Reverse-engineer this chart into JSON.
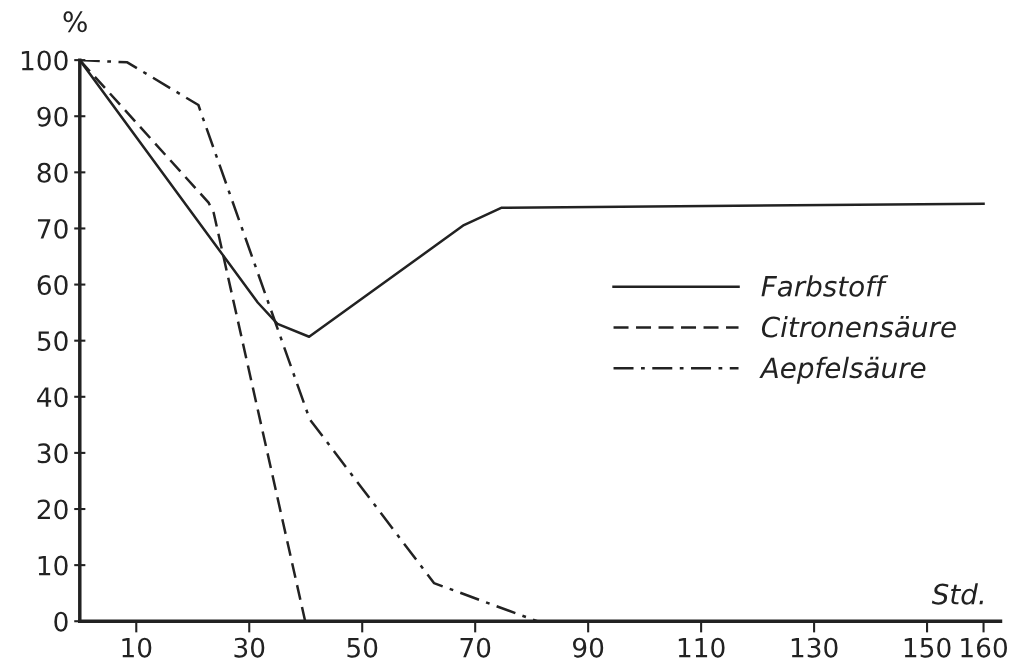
{
  "chart_data": {
    "type": "line",
    "xlabel": "Std.",
    "ylabel": "%",
    "xlim": [
      0,
      163
    ],
    "xticks": [
      10,
      30,
      50,
      70,
      90,
      110,
      130,
      150,
      160
    ],
    "ylim": [
      0,
      100
    ],
    "yticks": [
      0,
      10,
      20,
      30,
      40,
      50,
      60,
      70,
      80,
      90,
      100
    ],
    "grid": false,
    "legend": "right",
    "marker": "none",
    "series": [
      {
        "name": "Farbstoff",
        "color": "#222222",
        "line_style": "solid",
        "x": [
          0,
          31.5,
          35,
          40.6,
          68,
          74.7,
          160
        ],
        "values": [
          100,
          56.8,
          53,
          50.7,
          70.6,
          73.7,
          74.4
        ]
      },
      {
        "name": "Citronensäure",
        "color": "#222222",
        "line_style": "dashed",
        "x": [
          0,
          22.8,
          23.7,
          39.9
        ],
        "values": [
          100,
          74.6,
          72.8,
          0
        ]
      },
      {
        "name": "Aepfelsäure",
        "color": "#222222",
        "line_style": "dashdot",
        "x": [
          0,
          8.4,
          21,
          21.4,
          40.7,
          62.7,
          81
        ],
        "values": [
          100,
          99.6,
          92,
          90.8,
          36,
          6.8,
          0
        ]
      }
    ]
  }
}
